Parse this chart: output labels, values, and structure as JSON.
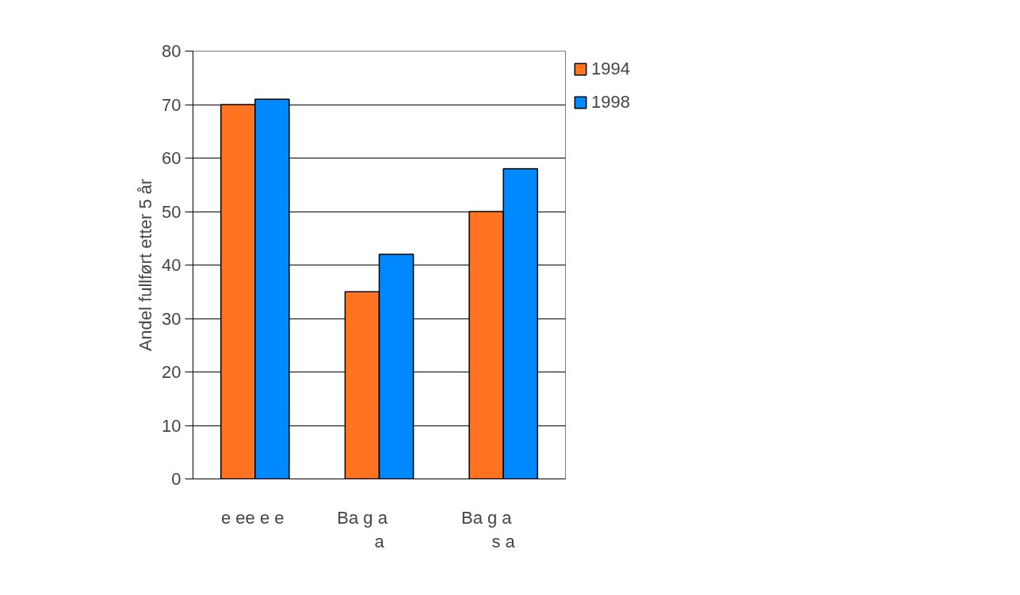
{
  "chart_data": {
    "type": "bar",
    "ylabel": "Andel fullført etter 5 år",
    "categories": [
      "e ee e  e",
      "Ba g        a\na",
      "Ba g        a\ns a"
    ],
    "series": [
      {
        "name": "1994",
        "color": "#ff7321",
        "values": [
          70,
          35,
          50
        ]
      },
      {
        "name": "1998",
        "color": "#0088ff",
        "values": [
          71,
          42,
          58
        ]
      }
    ],
    "ylim": [
      0,
      80
    ],
    "yticks": [
      0,
      10,
      20,
      30,
      40,
      50,
      60,
      70,
      80
    ],
    "grid": "y",
    "legend": "top right"
  }
}
